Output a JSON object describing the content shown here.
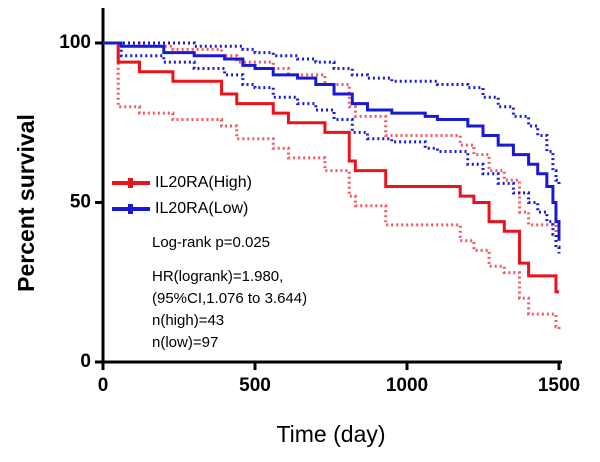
{
  "chart_data": {
    "type": "line",
    "step": "post",
    "xlabel": "Time (day)",
    "ylabel": "Percent survival",
    "xlim": [
      0,
      1500
    ],
    "ylim": [
      0,
      100
    ],
    "xticks": [
      0,
      500,
      1000,
      1500
    ],
    "yticks": [
      0,
      50,
      100
    ],
    "series": [
      {
        "name": "IL20RA(High)",
        "color": "#e8141c",
        "x": [
          0,
          50,
          120,
          230,
          390,
          440,
          560,
          610,
          730,
          810,
          830,
          930,
          1175,
          1220,
          1270,
          1320,
          1370,
          1400,
          1490,
          1500
        ],
        "values": [
          100,
          94,
          91,
          88,
          84,
          81,
          78,
          75,
          72,
          63,
          60,
          55,
          52,
          50,
          44,
          41,
          31,
          27,
          22,
          22
        ],
        "lower": [
          100,
          80,
          78,
          76,
          74,
          70,
          67,
          64,
          60,
          52,
          49,
          43,
          38,
          35,
          30,
          28,
          20,
          15,
          11,
          10
        ],
        "upper": [
          100,
          100,
          99,
          98,
          96,
          94,
          92,
          90,
          87,
          80,
          77,
          71,
          68,
          65,
          60,
          57,
          47,
          43,
          36,
          35
        ]
      },
      {
        "name": "IL20RA(Low)",
        "color": "#1a1ad0",
        "x": [
          0,
          60,
          200,
          300,
          400,
          460,
          500,
          560,
          640,
          700,
          760,
          820,
          870,
          950,
          1060,
          1100,
          1200,
          1250,
          1300,
          1350,
          1400,
          1430,
          1460,
          1480,
          1490,
          1500
        ],
        "values": [
          100,
          99,
          97,
          96,
          95,
          93,
          92,
          90,
          89,
          87,
          84,
          81,
          79,
          78,
          77,
          76,
          74,
          71,
          68,
          65,
          62,
          59,
          55,
          50,
          44,
          38
        ],
        "lower": [
          100,
          96,
          94,
          92,
          90,
          87,
          86,
          83,
          81,
          79,
          76,
          72,
          70,
          69,
          67,
          66,
          62,
          59,
          56,
          53,
          50,
          47,
          44,
          40,
          36,
          34
        ],
        "upper": [
          100,
          100,
          100,
          99,
          99,
          98,
          97,
          96,
          95,
          94,
          92,
          90,
          89,
          88,
          88,
          87,
          86,
          83,
          80,
          77,
          74,
          71,
          66,
          60,
          57,
          55
        ]
      }
    ],
    "annotations": [
      "Log-rank p=0.025",
      "HR(logrank)=1.980,",
      "(95%CI,1.076 to 3.644)",
      "n(high)=43",
      "n(low)=97"
    ]
  }
}
